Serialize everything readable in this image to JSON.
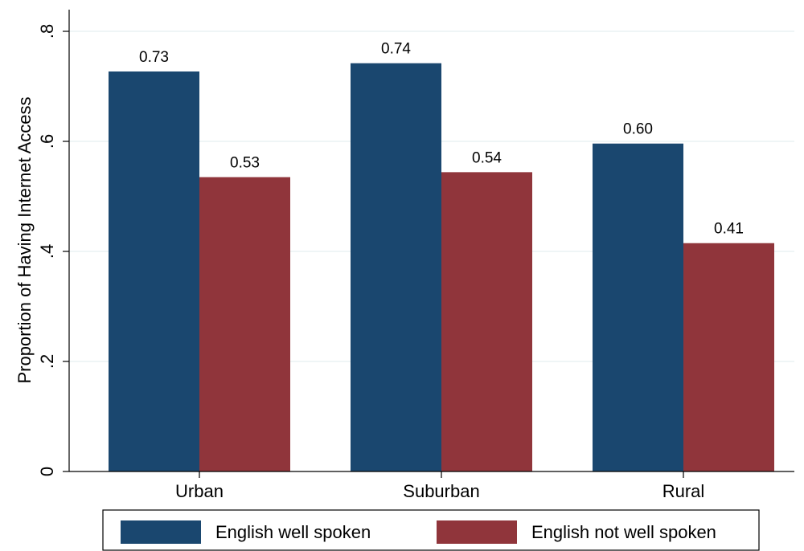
{
  "chart_data": {
    "type": "bar",
    "title": "",
    "xlabel": "",
    "ylabel": "Proportion of Having Internet Access",
    "categories": [
      "Urban",
      "Suburban",
      "Rural"
    ],
    "series": [
      {
        "name": "English well spoken",
        "color": "#1a476f",
        "values": [
          0.727,
          0.742,
          0.596
        ],
        "labels": [
          "0.73",
          "0.74",
          "0.60"
        ]
      },
      {
        "name": "English not well spoken",
        "color": "#90353b",
        "values": [
          0.535,
          0.544,
          0.415
        ],
        "labels": [
          "0.53",
          "0.54",
          "0.41"
        ]
      }
    ],
    "ylim": [
      0,
      0.8
    ],
    "yticks": [
      0,
      0.2,
      0.4,
      0.6,
      0.8
    ],
    "ytick_labels": [
      "0",
      ".2",
      ".4",
      ".6",
      ".8"
    ],
    "grid": true,
    "legend_position": "bottom"
  }
}
